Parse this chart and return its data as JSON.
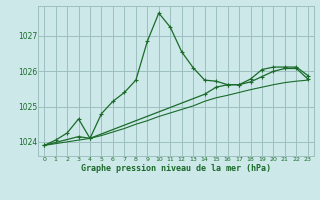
{
  "title": "Graphe pression niveau de la mer (hPa)",
  "bg_color": "#cce8e8",
  "grid_color": "#9dbfbf",
  "line_color": "#1a6b2a",
  "xlim": [
    -0.5,
    23.5
  ],
  "ylim": [
    1023.6,
    1027.85
  ],
  "yticks": [
    1024,
    1025,
    1026,
    1027
  ],
  "xticks": [
    0,
    1,
    2,
    3,
    4,
    5,
    6,
    7,
    8,
    9,
    10,
    11,
    12,
    13,
    14,
    15,
    16,
    17,
    18,
    19,
    20,
    21,
    22,
    23
  ],
  "series1": {
    "x": [
      0,
      1,
      2,
      3,
      4,
      5,
      6,
      7,
      8,
      9,
      10,
      11,
      12,
      13,
      14,
      15,
      16,
      17,
      18,
      19,
      20,
      21,
      22,
      23
    ],
    "y": [
      1023.9,
      1024.05,
      1024.25,
      1024.65,
      1024.1,
      1024.8,
      1025.15,
      1025.4,
      1025.75,
      1026.85,
      1027.65,
      1027.25,
      1026.55,
      1026.1,
      1025.75,
      1025.72,
      1025.62,
      1025.62,
      1025.78,
      1026.05,
      1026.12,
      1026.12,
      1026.12,
      1025.88
    ]
  },
  "series2": {
    "x": [
      0,
      3,
      4,
      14,
      15,
      16,
      17,
      18,
      19,
      20,
      21,
      22,
      23
    ],
    "y": [
      1023.9,
      1024.15,
      1024.1,
      1025.35,
      1025.55,
      1025.62,
      1025.62,
      1025.7,
      1025.85,
      1026.0,
      1026.08,
      1026.08,
      1025.78
    ]
  },
  "series3": {
    "x": [
      0,
      1,
      2,
      3,
      4,
      5,
      6,
      7,
      8,
      9,
      10,
      11,
      12,
      13,
      14,
      15,
      16,
      17,
      18,
      19,
      20,
      21,
      22,
      23
    ],
    "y": [
      1023.9,
      1023.95,
      1024.0,
      1024.05,
      1024.1,
      1024.18,
      1024.28,
      1024.38,
      1024.5,
      1024.6,
      1024.72,
      1024.82,
      1024.92,
      1025.02,
      1025.15,
      1025.25,
      1025.32,
      1025.4,
      1025.48,
      1025.55,
      1025.62,
      1025.68,
      1025.72,
      1025.75
    ]
  }
}
